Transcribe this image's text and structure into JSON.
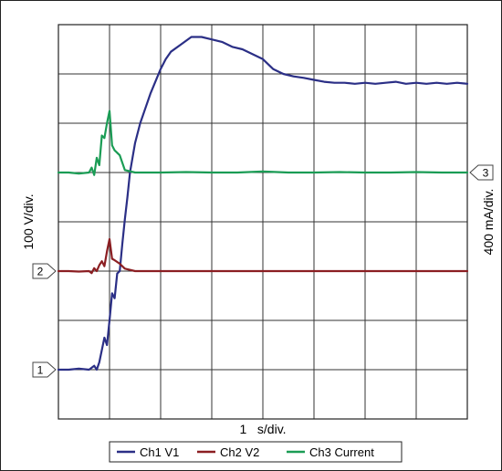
{
  "chart_data": {
    "type": "line",
    "title": "",
    "xlabel": "1   s/div.",
    "ylabel_left": "100 V/div.",
    "ylabel_right": "400 mA/div.",
    "x_range": [
      0,
      8
    ],
    "y_range": [
      0,
      8
    ],
    "grid": true,
    "legend_position": "bottom",
    "channel_markers": [
      {
        "label": "1",
        "side": "left",
        "level": 1.0
      },
      {
        "label": "2",
        "side": "left",
        "level": 3.0
      },
      {
        "label": "3",
        "side": "right",
        "level": 5.0
      }
    ],
    "series": [
      {
        "name": "Ch1 V1",
        "color": "#2b2f86",
        "x": [
          0,
          0.2,
          0.4,
          0.6,
          0.7,
          0.75,
          0.8,
          0.85,
          0.9,
          0.95,
          1.0,
          1.05,
          1.1,
          1.15,
          1.2,
          1.25,
          1.3,
          1.35,
          1.4,
          1.5,
          1.6,
          1.7,
          1.8,
          1.9,
          2.0,
          2.1,
          2.2,
          2.4,
          2.6,
          2.8,
          3.0,
          3.2,
          3.4,
          3.6,
          3.8,
          4.0,
          4.2,
          4.4,
          4.6,
          4.8,
          5.0,
          5.2,
          5.4,
          5.6,
          5.8,
          6.0,
          6.2,
          6.4,
          6.6,
          6.8,
          7.0,
          7.2,
          7.4,
          7.6,
          7.8,
          8.0
        ],
        "values": [
          1.0,
          1.0,
          1.02,
          1.0,
          1.08,
          1.0,
          1.15,
          1.4,
          1.65,
          1.5,
          2.0,
          2.55,
          2.45,
          2.95,
          3.0,
          3.55,
          4.05,
          4.5,
          5.0,
          5.6,
          6.0,
          6.3,
          6.6,
          6.85,
          7.1,
          7.3,
          7.45,
          7.6,
          7.75,
          7.75,
          7.7,
          7.65,
          7.55,
          7.5,
          7.4,
          7.3,
          7.1,
          7.0,
          6.95,
          6.92,
          6.88,
          6.84,
          6.82,
          6.82,
          6.8,
          6.82,
          6.8,
          6.82,
          6.84,
          6.8,
          6.82,
          6.8,
          6.82,
          6.8,
          6.82,
          6.8
        ]
      },
      {
        "name": "Ch2 V2",
        "color": "#8b1e22",
        "x": [
          0,
          0.2,
          0.4,
          0.6,
          0.65,
          0.7,
          0.75,
          0.8,
          0.85,
          0.9,
          0.95,
          1.0,
          1.05,
          1.1,
          1.2,
          1.3,
          1.5,
          2.0,
          3.0,
          4.0,
          5.0,
          6.0,
          7.0,
          8.0
        ],
        "values": [
          3.0,
          3.0,
          2.99,
          3.0,
          2.96,
          3.06,
          3.0,
          3.12,
          3.2,
          3.1,
          3.4,
          3.65,
          3.25,
          3.22,
          3.15,
          3.05,
          3.0,
          3.0,
          3.0,
          3.0,
          3.0,
          3.0,
          3.0,
          3.0
        ]
      },
      {
        "name": "Ch3 Current",
        "color": "#1b9c55",
        "x": [
          0,
          0.2,
          0.4,
          0.6,
          0.65,
          0.7,
          0.75,
          0.8,
          0.85,
          0.9,
          0.95,
          1.0,
          1.05,
          1.1,
          1.2,
          1.3,
          1.5,
          2.0,
          2.5,
          3.0,
          3.5,
          4.0,
          4.5,
          5.0,
          5.5,
          6.0,
          6.5,
          7.0,
          7.5,
          8.0
        ],
        "values": [
          5.0,
          5.0,
          4.98,
          5.0,
          5.1,
          4.95,
          5.3,
          5.15,
          5.75,
          5.7,
          6.0,
          6.25,
          5.55,
          5.45,
          5.35,
          5.05,
          5.0,
          5.0,
          5.01,
          5.0,
          5.0,
          5.02,
          5.0,
          5.0,
          5.01,
          5.0,
          5.0,
          5.01,
          5.0,
          5.0
        ]
      }
    ]
  }
}
